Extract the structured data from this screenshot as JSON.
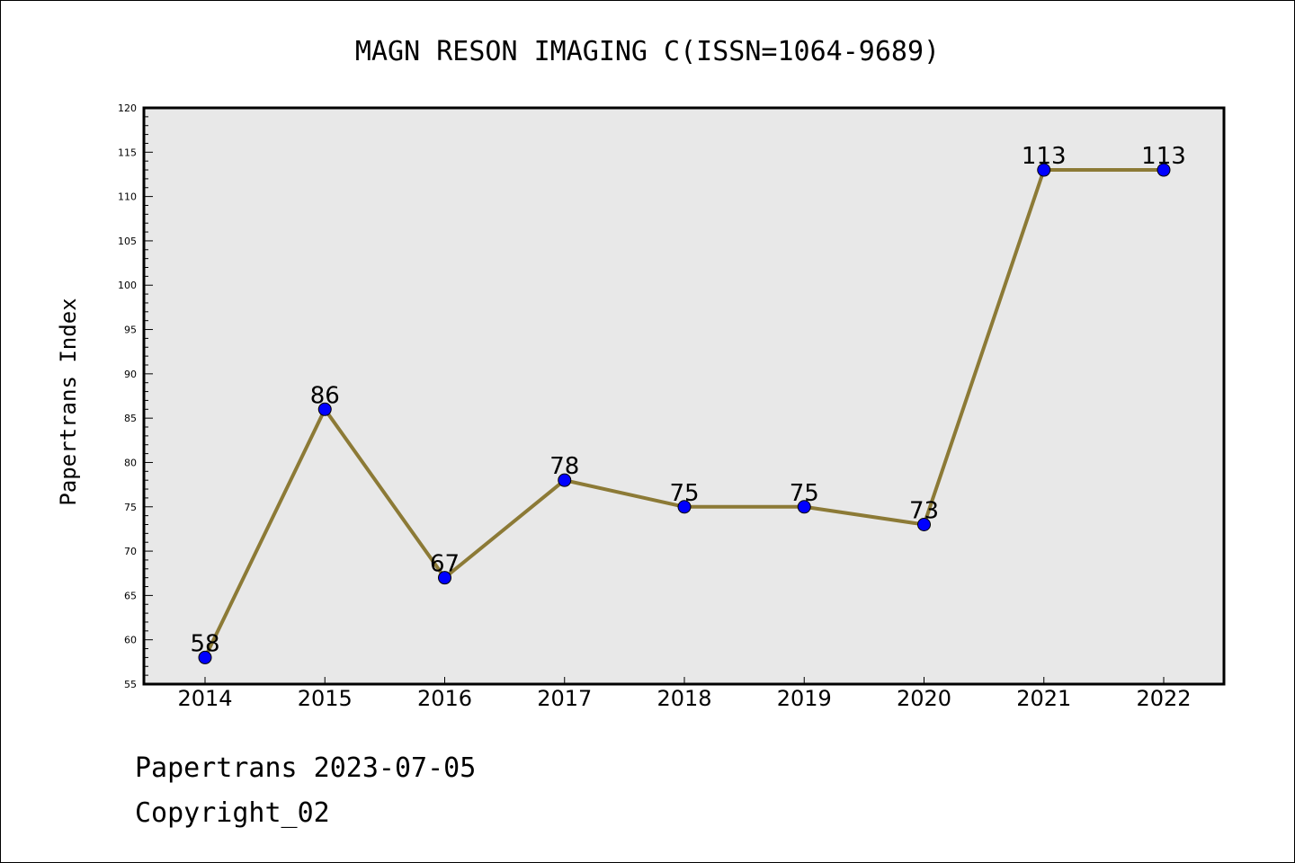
{
  "chart_data": {
    "type": "line",
    "title": "MAGN RESON IMAGING C(ISSN=1064-9689)",
    "xlabel": "",
    "ylabel": "Papertrans Index",
    "x": [
      "2014",
      "2015",
      "2016",
      "2017",
      "2018",
      "2019",
      "2020",
      "2021",
      "2022"
    ],
    "series": [
      {
        "values": [
          58,
          86,
          67,
          78,
          75,
          75,
          73,
          113,
          113
        ]
      }
    ],
    "ylim": [
      55,
      120
    ],
    "yticks": [
      55,
      60,
      65,
      70,
      75,
      80,
      85,
      90,
      95,
      100,
      105,
      110,
      115,
      120
    ],
    "grid": false,
    "colors": {
      "line": "#8c7a36",
      "marker": "#0000ff",
      "plot_bg": "#e8e8e8"
    }
  },
  "footer": {
    "line1": "Papertrans 2023-07-05",
    "line2": "Copyright_02"
  }
}
